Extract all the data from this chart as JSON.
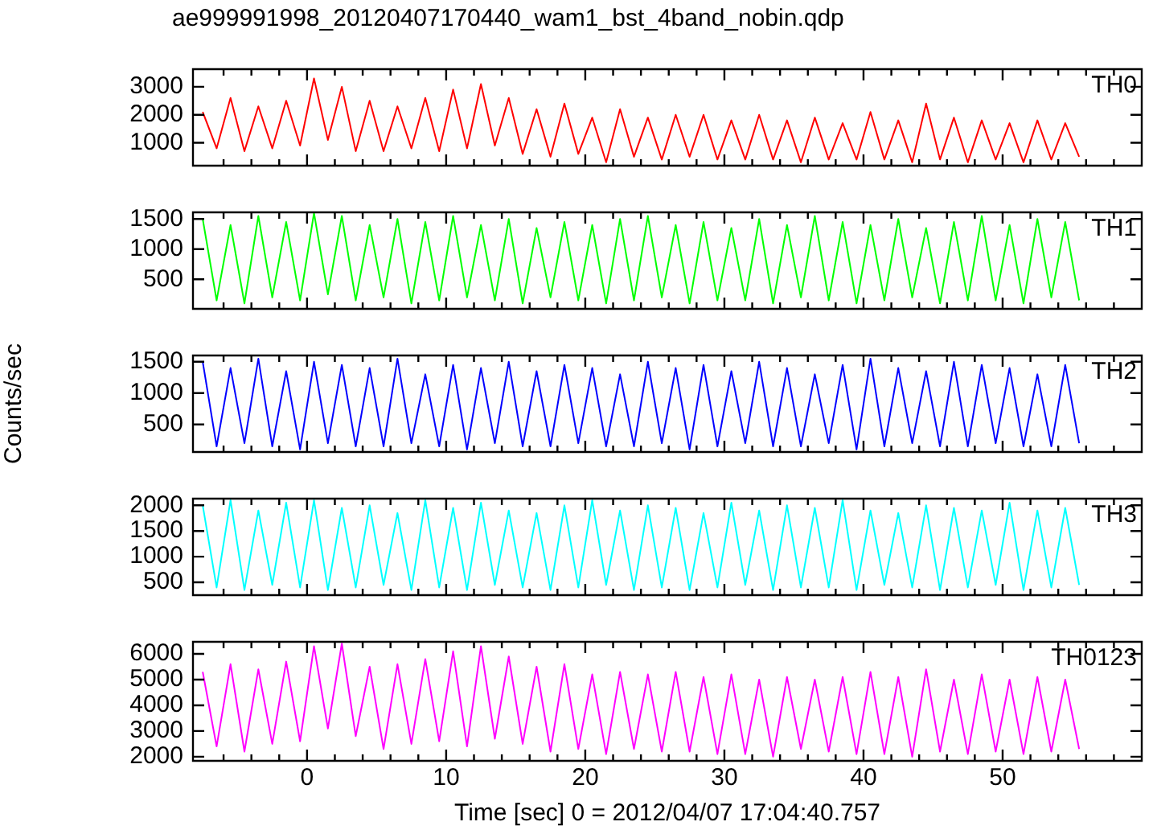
{
  "chart_data": [
    {
      "type": "line",
      "title": "ae999991998_20120407170440_wam1_bst_4band_nobin.qdp",
      "tick_labels": "y",
      "xlim": [
        -8.2,
        60
      ],
      "xticks": [
        {
          "value": -6,
          "label": null
        },
        {
          "value": -4,
          "label": null
        },
        {
          "value": -2,
          "label": null
        },
        0,
        {
          "value": 2,
          "label": null
        },
        {
          "value": 4,
          "label": null
        },
        {
          "value": 6,
          "label": null
        },
        {
          "value": 8,
          "label": null
        },
        10,
        {
          "value": 12,
          "label": null
        },
        {
          "value": 14,
          "label": null
        },
        {
          "value": 16,
          "label": null
        },
        {
          "value": 18,
          "label": null
        },
        20,
        {
          "value": 22,
          "label": null
        },
        {
          "value": 24,
          "label": null
        },
        {
          "value": 26,
          "label": null
        },
        {
          "value": 28,
          "label": null
        },
        30,
        {
          "value": 32,
          "label": null
        },
        {
          "value": 34,
          "label": null
        },
        {
          "value": 36,
          "label": null
        },
        {
          "value": 38,
          "label": null
        },
        40,
        {
          "value": 42,
          "label": null
        },
        {
          "value": 44,
          "label": null
        },
        {
          "value": 46,
          "label": null
        },
        {
          "value": 48,
          "label": null
        },
        50,
        {
          "value": 52,
          "label": null
        },
        {
          "value": 54,
          "label": null
        },
        {
          "value": 56,
          "label": null
        },
        {
          "value": 58,
          "label": null
        }
      ],
      "ylim": [
        180,
        3630
      ],
      "yticks": [
        1000,
        2000,
        3000
      ],
      "x": [
        -7.5,
        -6.5,
        -5.5,
        -4.5,
        -3.5,
        -2.5,
        -1.5,
        -0.5,
        0.5,
        1.5,
        2.5,
        3.5,
        4.5,
        5.5,
        6.5,
        7.5,
        8.5,
        9.5,
        10.5,
        11.5,
        12.5,
        13.5,
        14.5,
        15.5,
        16.5,
        17.5,
        18.5,
        19.5,
        20.5,
        21.5,
        22.5,
        23.5,
        24.5,
        25.5,
        26.5,
        27.5,
        28.5,
        29.5,
        30.5,
        31.5,
        32.5,
        33.5,
        34.5,
        35.5,
        36.5,
        37.5,
        38.5,
        39.5,
        40.5,
        41.5,
        42.5,
        43.5,
        44.5,
        45.5,
        46.5,
        47.5,
        48.5,
        49.5,
        50.5,
        51.5,
        52.5,
        53.5,
        54.5,
        55.5
      ],
      "series": [
        {
          "name": "TH0",
          "color": "#ff0000",
          "values": [
            2100,
            800,
            2600,
            700,
            2300,
            800,
            2500,
            900,
            3300,
            1100,
            3000,
            700,
            2500,
            700,
            2300,
            800,
            2600,
            700,
            2900,
            800,
            3100,
            900,
            2600,
            600,
            2200,
            500,
            2400,
            600,
            1900,
            300,
            2200,
            500,
            1900,
            400,
            2000,
            500,
            2000,
            400,
            1800,
            400,
            2000,
            400,
            1800,
            300,
            1900,
            400,
            1700,
            400,
            2100,
            400,
            1800,
            300,
            2400,
            400,
            1900,
            300,
            1800,
            400,
            1700,
            300,
            1800,
            400,
            1700,
            500
          ]
        }
      ]
    },
    {
      "type": "line",
      "tick_labels": "y",
      "xlim": [
        -8.2,
        60
      ],
      "xticks": [
        {
          "value": -6,
          "label": null
        },
        {
          "value": -4,
          "label": null
        },
        {
          "value": -2,
          "label": null
        },
        0,
        {
          "value": 2,
          "label": null
        },
        {
          "value": 4,
          "label": null
        },
        {
          "value": 6,
          "label": null
        },
        {
          "value": 8,
          "label": null
        },
        10,
        {
          "value": 12,
          "label": null
        },
        {
          "value": 14,
          "label": null
        },
        {
          "value": 16,
          "label": null
        },
        {
          "value": 18,
          "label": null
        },
        20,
        {
          "value": 22,
          "label": null
        },
        {
          "value": 24,
          "label": null
        },
        {
          "value": 26,
          "label": null
        },
        {
          "value": 28,
          "label": null
        },
        30,
        {
          "value": 32,
          "label": null
        },
        {
          "value": 34,
          "label": null
        },
        {
          "value": 36,
          "label": null
        },
        {
          "value": 38,
          "label": null
        },
        40,
        {
          "value": 42,
          "label": null
        },
        {
          "value": 44,
          "label": null
        },
        {
          "value": 46,
          "label": null
        },
        {
          "value": 48,
          "label": null
        },
        50,
        {
          "value": 52,
          "label": null
        },
        {
          "value": 54,
          "label": null
        },
        {
          "value": 56,
          "label": null
        },
        {
          "value": 58,
          "label": null
        }
      ],
      "ylim": [
        10,
        1610
      ],
      "yticks": [
        500,
        1000,
        1500
      ],
      "x": [
        -7.5,
        -6.5,
        -5.5,
        -4.5,
        -3.5,
        -2.5,
        -1.5,
        -0.5,
        0.5,
        1.5,
        2.5,
        3.5,
        4.5,
        5.5,
        6.5,
        7.5,
        8.5,
        9.5,
        10.5,
        11.5,
        12.5,
        13.5,
        14.5,
        15.5,
        16.5,
        17.5,
        18.5,
        19.5,
        20.5,
        21.5,
        22.5,
        23.5,
        24.5,
        25.5,
        26.5,
        27.5,
        28.5,
        29.5,
        30.5,
        31.5,
        32.5,
        33.5,
        34.5,
        35.5,
        36.5,
        37.5,
        38.5,
        39.5,
        40.5,
        41.5,
        42.5,
        43.5,
        44.5,
        45.5,
        46.5,
        47.5,
        48.5,
        49.5,
        50.5,
        51.5,
        52.5,
        53.5,
        54.5,
        55.5
      ],
      "series": [
        {
          "name": "TH1",
          "color": "#00ff00",
          "values": [
            1500,
            150,
            1400,
            100,
            1550,
            200,
            1450,
            150,
            1600,
            250,
            1550,
            150,
            1400,
            200,
            1500,
            100,
            1450,
            150,
            1550,
            200,
            1400,
            150,
            1500,
            100,
            1350,
            200,
            1450,
            150,
            1400,
            100,
            1500,
            150,
            1550,
            200,
            1400,
            100,
            1450,
            150,
            1350,
            150,
            1500,
            100,
            1400,
            200,
            1550,
            150,
            1450,
            100,
            1400,
            150,
            1500,
            200,
            1350,
            100,
            1450,
            150,
            1550,
            150,
            1400,
            100,
            1500,
            200,
            1450,
            150
          ]
        }
      ]
    },
    {
      "type": "line",
      "tick_labels": "y",
      "ylabel": "Counts/sec",
      "xlim": [
        -8.2,
        60
      ],
      "xticks": [
        {
          "value": -6,
          "label": null
        },
        {
          "value": -4,
          "label": null
        },
        {
          "value": -2,
          "label": null
        },
        0,
        {
          "value": 2,
          "label": null
        },
        {
          "value": 4,
          "label": null
        },
        {
          "value": 6,
          "label": null
        },
        {
          "value": 8,
          "label": null
        },
        10,
        {
          "value": 12,
          "label": null
        },
        {
          "value": 14,
          "label": null
        },
        {
          "value": 16,
          "label": null
        },
        {
          "value": 18,
          "label": null
        },
        20,
        {
          "value": 22,
          "label": null
        },
        {
          "value": 24,
          "label": null
        },
        {
          "value": 26,
          "label": null
        },
        {
          "value": 28,
          "label": null
        },
        30,
        {
          "value": 32,
          "label": null
        },
        {
          "value": 34,
          "label": null
        },
        {
          "value": 36,
          "label": null
        },
        {
          "value": 38,
          "label": null
        },
        40,
        {
          "value": 42,
          "label": null
        },
        {
          "value": 44,
          "label": null
        },
        {
          "value": 46,
          "label": null
        },
        {
          "value": 48,
          "label": null
        },
        50,
        {
          "value": 52,
          "label": null
        },
        {
          "value": 54,
          "label": null
        },
        {
          "value": 56,
          "label": null
        },
        {
          "value": 58,
          "label": null
        }
      ],
      "ylim": [
        60,
        1600
      ],
      "yticks": [
        500,
        1000,
        1500
      ],
      "x": [
        -7.5,
        -6.5,
        -5.5,
        -4.5,
        -3.5,
        -2.5,
        -1.5,
        -0.5,
        0.5,
        1.5,
        2.5,
        3.5,
        4.5,
        5.5,
        6.5,
        7.5,
        8.5,
        9.5,
        10.5,
        11.5,
        12.5,
        13.5,
        14.5,
        15.5,
        16.5,
        17.5,
        18.5,
        19.5,
        20.5,
        21.5,
        22.5,
        23.5,
        24.5,
        25.5,
        26.5,
        27.5,
        28.5,
        29.5,
        30.5,
        31.5,
        32.5,
        33.5,
        34.5,
        35.5,
        36.5,
        37.5,
        38.5,
        39.5,
        40.5,
        41.5,
        42.5,
        43.5,
        44.5,
        45.5,
        46.5,
        47.5,
        48.5,
        49.5,
        50.5,
        51.5,
        52.5,
        53.5,
        54.5,
        55.5
      ],
      "series": [
        {
          "name": "TH2",
          "color": "#0000ff",
          "values": [
            1500,
            150,
            1400,
            200,
            1550,
            150,
            1350,
            100,
            1500,
            200,
            1450,
            150,
            1400,
            150,
            1550,
            200,
            1300,
            150,
            1450,
            100,
            1400,
            200,
            1500,
            150,
            1350,
            150,
            1450,
            200,
            1400,
            150,
            1300,
            150,
            1500,
            200,
            1400,
            100,
            1450,
            150,
            1350,
            200,
            1500,
            150,
            1400,
            150,
            1300,
            200,
            1450,
            100,
            1550,
            150,
            1400,
            200,
            1350,
            150,
            1500,
            150,
            1450,
            200,
            1400,
            150,
            1300,
            150,
            1450,
            200
          ]
        }
      ]
    },
    {
      "type": "line",
      "tick_labels": "y",
      "xlim": [
        -8.2,
        60
      ],
      "xticks": [
        {
          "value": -6,
          "label": null
        },
        {
          "value": -4,
          "label": null
        },
        {
          "value": -2,
          "label": null
        },
        0,
        {
          "value": 2,
          "label": null
        },
        {
          "value": 4,
          "label": null
        },
        {
          "value": 6,
          "label": null
        },
        {
          "value": 8,
          "label": null
        },
        10,
        {
          "value": 12,
          "label": null
        },
        {
          "value": 14,
          "label": null
        },
        {
          "value": 16,
          "label": null
        },
        {
          "value": 18,
          "label": null
        },
        20,
        {
          "value": 22,
          "label": null
        },
        {
          "value": 24,
          "label": null
        },
        {
          "value": 26,
          "label": null
        },
        {
          "value": 28,
          "label": null
        },
        30,
        {
          "value": 32,
          "label": null
        },
        {
          "value": 34,
          "label": null
        },
        {
          "value": 36,
          "label": null
        },
        {
          "value": 38,
          "label": null
        },
        40,
        {
          "value": 42,
          "label": null
        },
        {
          "value": 44,
          "label": null
        },
        {
          "value": 46,
          "label": null
        },
        {
          "value": 48,
          "label": null
        },
        50,
        {
          "value": 52,
          "label": null
        },
        {
          "value": 54,
          "label": null
        },
        {
          "value": 56,
          "label": null
        },
        {
          "value": 58,
          "label": null
        }
      ],
      "ylim": [
        250,
        2130
      ],
      "yticks": [
        500,
        1000,
        1500,
        2000
      ],
      "x": [
        -7.5,
        -6.5,
        -5.5,
        -4.5,
        -3.5,
        -2.5,
        -1.5,
        -0.5,
        0.5,
        1.5,
        2.5,
        3.5,
        4.5,
        5.5,
        6.5,
        7.5,
        8.5,
        9.5,
        10.5,
        11.5,
        12.5,
        13.5,
        14.5,
        15.5,
        16.5,
        17.5,
        18.5,
        19.5,
        20.5,
        21.5,
        22.5,
        23.5,
        24.5,
        25.5,
        26.5,
        27.5,
        28.5,
        29.5,
        30.5,
        31.5,
        32.5,
        33.5,
        34.5,
        35.5,
        36.5,
        37.5,
        38.5,
        39.5,
        40.5,
        41.5,
        42.5,
        43.5,
        44.5,
        45.5,
        46.5,
        47.5,
        48.5,
        49.5,
        50.5,
        51.5,
        52.5,
        53.5,
        54.5,
        55.5
      ],
      "series": [
        {
          "name": "TH3",
          "color": "#00ffff",
          "values": [
            2000,
            400,
            2100,
            350,
            1900,
            450,
            2050,
            400,
            2100,
            350,
            1950,
            400,
            2000,
            450,
            1850,
            350,
            2100,
            400,
            1950,
            350,
            2050,
            450,
            1900,
            400,
            1850,
            350,
            2000,
            400,
            2100,
            450,
            1900,
            350,
            2000,
            400,
            1950,
            350,
            1850,
            400,
            2050,
            450,
            1900,
            350,
            2000,
            400,
            1950,
            400,
            2100,
            350,
            1900,
            450,
            1850,
            400,
            2000,
            350,
            1950,
            400,
            1900,
            450,
            2050,
            350,
            1900,
            400,
            1950,
            450
          ]
        }
      ]
    },
    {
      "type": "line",
      "xlabel": "Time [sec] 0 = 2012/04/07 17:04:40.757",
      "xlim": [
        -8.2,
        60
      ],
      "xticks": [
        {
          "value": -6,
          "label": null
        },
        {
          "value": -4,
          "label": null
        },
        {
          "value": -2,
          "label": null
        },
        0,
        {
          "value": 2,
          "label": null
        },
        {
          "value": 4,
          "label": null
        },
        {
          "value": 6,
          "label": null
        },
        {
          "value": 8,
          "label": null
        },
        10,
        {
          "value": 12,
          "label": null
        },
        {
          "value": 14,
          "label": null
        },
        {
          "value": 16,
          "label": null
        },
        {
          "value": 18,
          "label": null
        },
        20,
        {
          "value": 22,
          "label": null
        },
        {
          "value": 24,
          "label": null
        },
        {
          "value": 26,
          "label": null
        },
        {
          "value": 28,
          "label": null
        },
        30,
        {
          "value": 32,
          "label": null
        },
        {
          "value": 34,
          "label": null
        },
        {
          "value": 36,
          "label": null
        },
        {
          "value": 38,
          "label": null
        },
        40,
        {
          "value": 42,
          "label": null
        },
        {
          "value": 44,
          "label": null
        },
        {
          "value": 46,
          "label": null
        },
        {
          "value": 48,
          "label": null
        },
        50,
        {
          "value": 52,
          "label": null
        },
        {
          "value": 54,
          "label": null
        },
        {
          "value": 56,
          "label": null
        },
        {
          "value": 58,
          "label": null
        }
      ],
      "ylim": [
        1840,
        6470
      ],
      "yticks": [
        2000,
        3000,
        4000,
        5000,
        6000
      ],
      "x": [
        -7.5,
        -6.5,
        -5.5,
        -4.5,
        -3.5,
        -2.5,
        -1.5,
        -0.5,
        0.5,
        1.5,
        2.5,
        3.5,
        4.5,
        5.5,
        6.5,
        7.5,
        8.5,
        9.5,
        10.5,
        11.5,
        12.5,
        13.5,
        14.5,
        15.5,
        16.5,
        17.5,
        18.5,
        19.5,
        20.5,
        21.5,
        22.5,
        23.5,
        24.5,
        25.5,
        26.5,
        27.5,
        28.5,
        29.5,
        30.5,
        31.5,
        32.5,
        33.5,
        34.5,
        35.5,
        36.5,
        37.5,
        38.5,
        39.5,
        40.5,
        41.5,
        42.5,
        43.5,
        44.5,
        45.5,
        46.5,
        47.5,
        48.5,
        49.5,
        50.5,
        51.5,
        52.5,
        53.5,
        54.5,
        55.5
      ],
      "series": [
        {
          "name": "TH0123",
          "color": "#ff00ff",
          "values": [
            5300,
            2400,
            5600,
            2200,
            5400,
            2500,
            5700,
            2600,
            6300,
            3100,
            6400,
            2800,
            5500,
            2300,
            5600,
            2500,
            5800,
            2600,
            6100,
            2400,
            6300,
            2700,
            5900,
            2500,
            5500,
            2200,
            5600,
            2300,
            5200,
            2100,
            5300,
            2300,
            5200,
            2200,
            5300,
            2200,
            5100,
            2100,
            5200,
            2100,
            5000,
            2000,
            5100,
            2300,
            5000,
            2200,
            5100,
            2100,
            5300,
            2100,
            5100,
            2000,
            5400,
            2200,
            5000,
            2100,
            5200,
            2200,
            5000,
            2100,
            5100,
            2200,
            5000,
            2300
          ]
        }
      ]
    }
  ]
}
